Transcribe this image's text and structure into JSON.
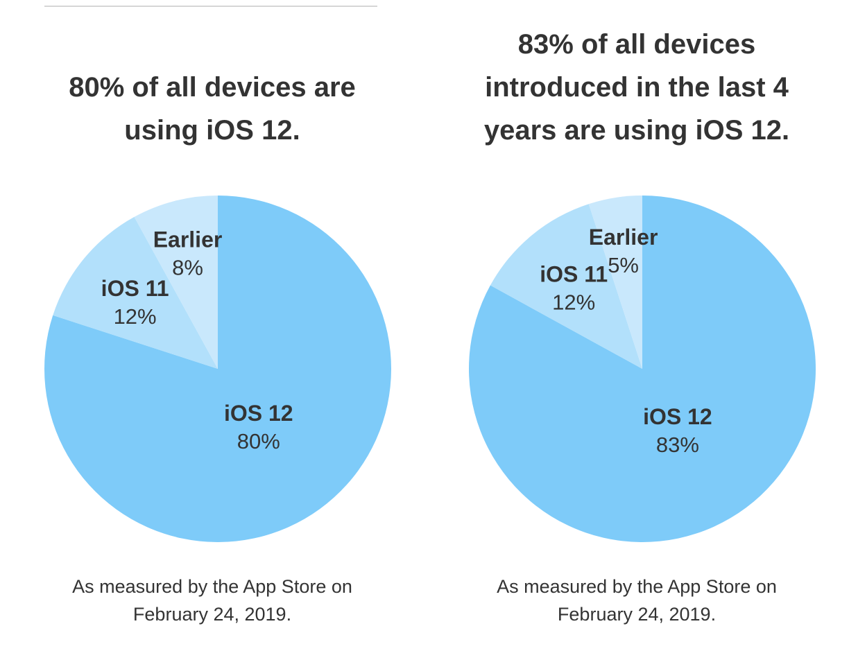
{
  "colors": {
    "ios12": "#7ecbf9",
    "ios11": "#b2e0fb",
    "earlier": "#c9e8fc",
    "text": "#333333"
  },
  "chart_data": [
    {
      "type": "pie",
      "title": "80% of all devices are using iOS 12.",
      "title_lines": [
        "80% of all devices are",
        "using iOS 12."
      ],
      "slices": [
        {
          "label": "iOS 12",
          "value": 80,
          "value_label": "80%"
        },
        {
          "label": "iOS 11",
          "value": 12,
          "value_label": "12%"
        },
        {
          "label": "Earlier",
          "value": 8,
          "value_label": "8%"
        }
      ],
      "footnote_lines": [
        "As measured by the App Store on",
        "February 24, 2019."
      ]
    },
    {
      "type": "pie",
      "title": "83% of all devices introduced in the last 4 years are using iOS 12.",
      "title_lines": [
        "83% of all devices",
        "introduced in the last 4",
        "years are using iOS 12."
      ],
      "slices": [
        {
          "label": "iOS 12",
          "value": 83,
          "value_label": "83%"
        },
        {
          "label": "iOS 11",
          "value": 12,
          "value_label": "12%"
        },
        {
          "label": "Earlier",
          "value": 5,
          "value_label": "5%"
        }
      ],
      "footnote_lines": [
        "As measured by the App Store on",
        "February 24, 2019."
      ]
    }
  ]
}
